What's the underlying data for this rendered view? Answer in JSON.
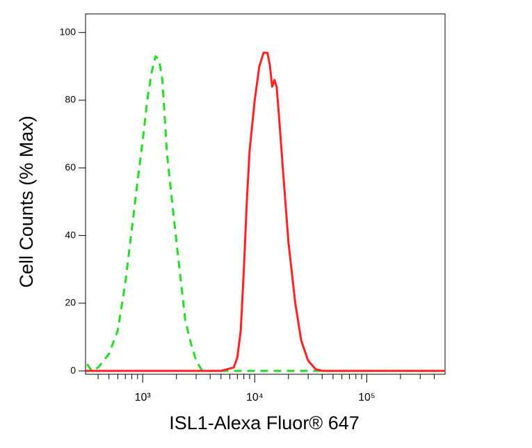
{
  "chart_data": {
    "type": "line",
    "x_label": "ISL1-Alexa Fluor® 647",
    "y_label": "Cell Counts (% Max)",
    "log_x": true,
    "xlim": [
      309,
      500000
    ],
    "ylim": [
      -1,
      105.5
    ],
    "xticks": [
      {
        "value": 1000,
        "label": "10³"
      },
      {
        "value": 10000,
        "label": "10⁴"
      },
      {
        "value": 100000,
        "label": "10⁵"
      }
    ],
    "x_minor_ticks": [
      400,
      500,
      600,
      700,
      800,
      900,
      2000,
      3000,
      4000,
      5000,
      6000,
      7000,
      8000,
      9000,
      20000,
      30000,
      40000,
      50000,
      60000,
      70000,
      80000,
      90000,
      200000,
      300000,
      400000
    ],
    "yticks": [
      0,
      20,
      40,
      60,
      80,
      100
    ],
    "series": [
      {
        "color": "#22dd22",
        "dashed": true,
        "x": [
          320,
          350,
          400,
          500,
          600,
          700,
          800,
          900,
          1000,
          1100,
          1200,
          1300,
          1400,
          1500,
          1650,
          1900,
          2100,
          2400,
          2700,
          3000,
          3400,
          10000,
          500000
        ],
        "values": [
          2,
          0,
          1,
          5,
          12,
          26,
          42,
          56,
          68,
          80,
          88,
          93,
          92,
          86,
          64,
          45,
          32,
          15,
          8,
          3,
          0,
          0,
          0
        ]
      },
      {
        "color": "#ff2020",
        "dashed": false,
        "x": [
          309,
          5000,
          6500,
          7000,
          7500,
          8000,
          8500,
          9000,
          10000,
          11000,
          12000,
          13000,
          13700,
          14300,
          15000,
          15700,
          16500,
          18000,
          20000,
          23000,
          26000,
          30000,
          35000,
          40000,
          500000
        ],
        "values": [
          0,
          0,
          1,
          4,
          12,
          30,
          50,
          65,
          80,
          90,
          94,
          94,
          90,
          84,
          86,
          84,
          75,
          58,
          38,
          20,
          9,
          3,
          0.5,
          0,
          0
        ]
      }
    ]
  }
}
